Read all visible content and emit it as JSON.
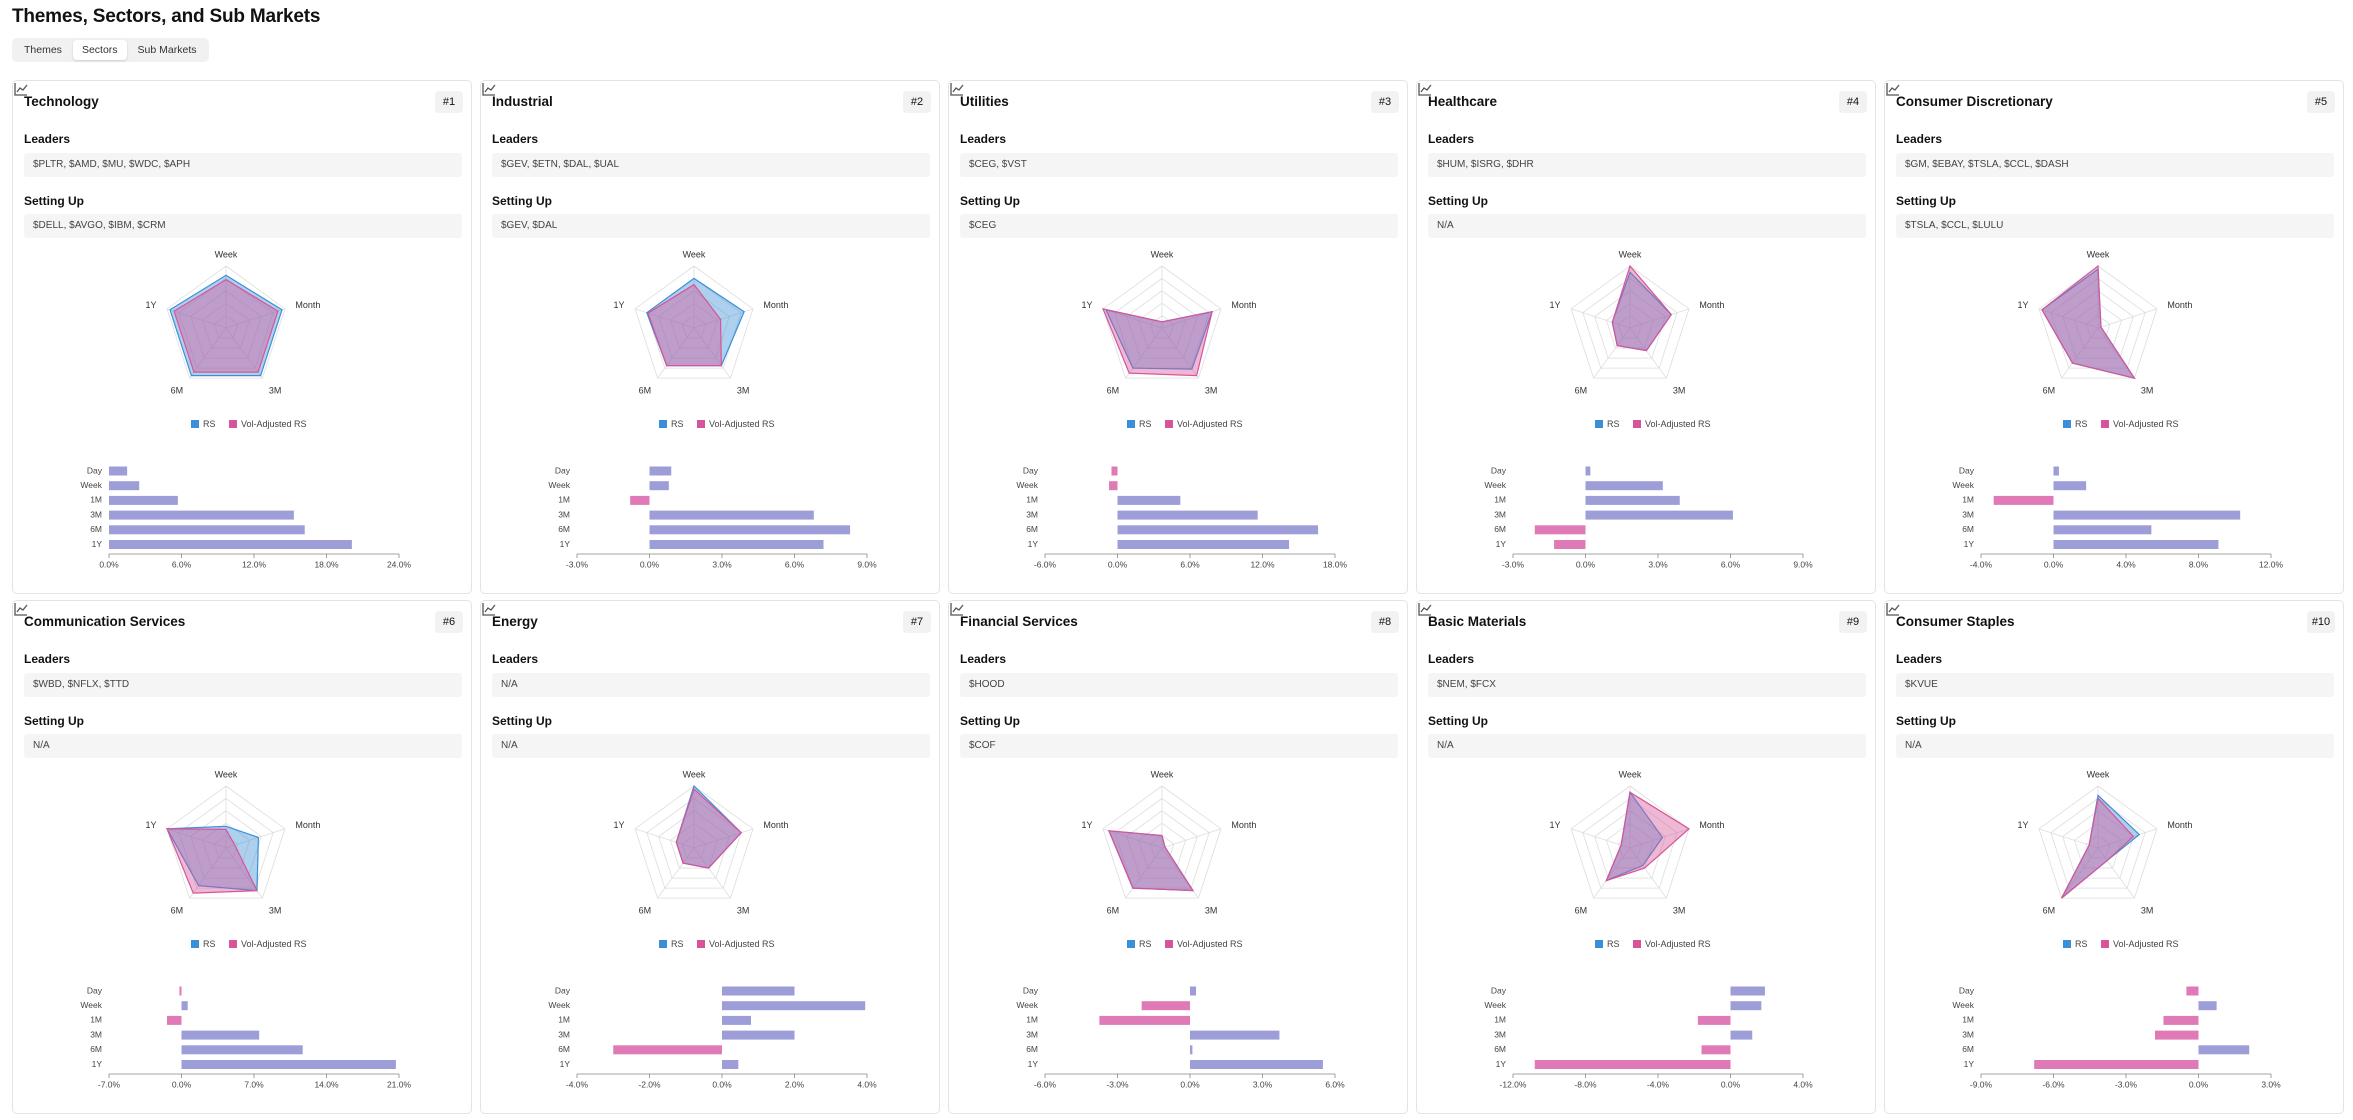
{
  "page": {
    "title": "Themes, Sectors, and Sub Markets",
    "tabs": [
      "Themes",
      "Sectors",
      "Sub Markets"
    ],
    "active_tab": 1
  },
  "labels": {
    "leaders": "Leaders",
    "setting_up": "Setting Up"
  },
  "radar_axes": [
    "Week",
    "Month",
    "3M",
    "6M",
    "1Y"
  ],
  "radar_series": [
    {
      "name": "RS",
      "color": "#3b8fd6"
    },
    {
      "name": "Vol-Adjusted RS",
      "color": "#d6559a"
    }
  ],
  "bar_categories": [
    "Day",
    "Week",
    "1M",
    "3M",
    "6M",
    "1Y"
  ],
  "bar_colors": {
    "positive": "#9d9ed8",
    "negative": "#e07ab6"
  },
  "cards": [
    {
      "title": "Technology",
      "rank": "#1",
      "leaders": "$PLTR, $AMD, $MU, $WDC, $APH",
      "setting_up": "$DELL, $AVGO, $IBM, $CRM",
      "radar": {
        "type": "radar",
        "rlim": [
          0,
          100
        ],
        "series": [
          {
            "values": [
              85,
              95,
              95,
              95,
              95
            ]
          },
          {
            "values": [
              78,
              88,
              88,
              88,
              88
            ]
          }
        ]
      },
      "bars": {
        "type": "bar",
        "values": [
          1.5,
          2.5,
          5.7,
          15.3,
          16.2,
          20.1
        ],
        "xlim": [
          0,
          24
        ],
        "xticks": [
          {
            "value": 0,
            "label": "0.0%"
          },
          {
            "value": 6,
            "label": "6.0%"
          },
          {
            "value": 12,
            "label": "12.0%"
          },
          {
            "value": 18,
            "label": "18.0%"
          },
          {
            "value": 24,
            "label": "24.0%"
          }
        ]
      }
    },
    {
      "title": "Industrial",
      "rank": "#2",
      "leaders": "$GEV, $ETN, $DAL, $UAL",
      "setting_up": "$GEV, $DAL",
      "radar": {
        "type": "radar",
        "rlim": [
          0,
          100
        ],
        "series": [
          {
            "values": [
              80,
              85,
              75,
              75,
              80
            ]
          },
          {
            "values": [
              70,
              45,
              75,
              75,
              78
            ]
          }
        ]
      },
      "bars": {
        "type": "bar",
        "values": [
          0.9,
          0.8,
          -0.8,
          6.8,
          8.3,
          7.2
        ],
        "xlim": [
          -3,
          9
        ],
        "xticks": [
          {
            "value": -3,
            "label": "-3.0%"
          },
          {
            "value": 0,
            "label": "0.0%"
          },
          {
            "value": 3,
            "label": "3.0%"
          },
          {
            "value": 6,
            "label": "6.0%"
          },
          {
            "value": 9,
            "label": "9.0%"
          }
        ]
      }
    },
    {
      "title": "Utilities",
      "rank": "#3",
      "leaders": "$CEG, $VST",
      "setting_up": "$CEG",
      "radar": {
        "type": "radar",
        "rlim": [
          0,
          100
        ],
        "series": [
          {
            "values": [
              10,
              85,
              82,
              80,
              95
            ]
          },
          {
            "values": [
              10,
              85,
              95,
              90,
              100
            ]
          }
        ]
      },
      "bars": {
        "type": "bar",
        "values": [
          -0.5,
          -0.7,
          5.2,
          11.6,
          16.6,
          14.2
        ],
        "xlim": [
          -6,
          18
        ],
        "xticks": [
          {
            "value": -6,
            "label": "-6.0%"
          },
          {
            "value": 0,
            "label": "0.0%"
          },
          {
            "value": 6,
            "label": "6.0%"
          },
          {
            "value": 12,
            "label": "12.0%"
          },
          {
            "value": 18,
            "label": "18.0%"
          }
        ]
      }
    },
    {
      "title": "Healthcare",
      "rank": "#4",
      "leaders": "$HUM, $ISRG, $DHR",
      "setting_up": "N/A",
      "radar": {
        "type": "radar",
        "rlim": [
          0,
          100
        ],
        "series": [
          {
            "values": [
              90,
              70,
              45,
              35,
              30
            ]
          },
          {
            "values": [
              100,
              70,
              45,
              35,
              30
            ]
          }
        ]
      },
      "bars": {
        "type": "bar",
        "values": [
          0.2,
          3.2,
          3.9,
          6.1,
          -2.1,
          -1.3
        ],
        "xlim": [
          -3,
          9
        ],
        "xticks": [
          {
            "value": -3,
            "label": "-3.0%"
          },
          {
            "value": 0,
            "label": "0.0%"
          },
          {
            "value": 3,
            "label": "3.0%"
          },
          {
            "value": 6,
            "label": "6.0%"
          },
          {
            "value": 9,
            "label": "9.0%"
          }
        ]
      }
    },
    {
      "title": "Consumer Discretionary",
      "rank": "#5",
      "leaders": "$GM, $EBAY, $TSLA, $CCL, $DASH",
      "setting_up": "$TSLA, $CCL, $LULU",
      "radar": {
        "type": "radar",
        "rlim": [
          0,
          100
        ],
        "series": [
          {
            "values": [
              95,
              5,
              100,
              70,
              95
            ]
          },
          {
            "values": [
              100,
              5,
              100,
              70,
              95
            ]
          }
        ]
      },
      "bars": {
        "type": "bar",
        "values": [
          0.3,
          1.8,
          -3.3,
          10.3,
          5.4,
          9.1
        ],
        "xlim": [
          -4,
          12
        ],
        "xticks": [
          {
            "value": -4,
            "label": "-4.0%"
          },
          {
            "value": 0,
            "label": "0.0%"
          },
          {
            "value": 4,
            "label": "4.0%"
          },
          {
            "value": 8,
            "label": "8.0%"
          },
          {
            "value": 12,
            "label": "12.0%"
          }
        ]
      }
    },
    {
      "title": "Communication Services",
      "rank": "#6",
      "leaders": "$WBD, $NFLX, $TTD",
      "setting_up": "N/A",
      "radar": {
        "type": "radar",
        "rlim": [
          0,
          100
        ],
        "series": [
          {
            "values": [
              35,
              55,
              85,
              75,
              100
            ]
          },
          {
            "values": [
              30,
              15,
              85,
              90,
              100
            ]
          }
        ]
      },
      "bars": {
        "type": "bar",
        "values": [
          -0.2,
          0.6,
          -1.4,
          7.5,
          11.7,
          20.7
        ],
        "xlim": [
          -7,
          21
        ],
        "xticks": [
          {
            "value": -7,
            "label": "-7.0%"
          },
          {
            "value": 0,
            "label": "0.0%"
          },
          {
            "value": 7,
            "label": "7.0%"
          },
          {
            "value": 14,
            "label": "14.0%"
          },
          {
            "value": 21,
            "label": "21.0%"
          }
        ]
      }
    },
    {
      "title": "Energy",
      "rank": "#7",
      "leaders": "N/A",
      "setting_up": "N/A",
      "radar": {
        "type": "radar",
        "rlim": [
          0,
          100
        ],
        "series": [
          {
            "values": [
              100,
              80,
              40,
              30,
              30
            ]
          },
          {
            "values": [
              95,
              80,
              40,
              30,
              30
            ]
          }
        ]
      },
      "bars": {
        "type": "bar",
        "values": [
          2.0,
          3.95,
          0.8,
          2.0,
          -3.0,
          0.45
        ],
        "xlim": [
          -4,
          4
        ],
        "xticks": [
          {
            "value": -4,
            "label": "-4.0%"
          },
          {
            "value": -2,
            "label": "-2.0%"
          },
          {
            "value": 0,
            "label": "0.0%"
          },
          {
            "value": 2,
            "label": "2.0%"
          },
          {
            "value": 4,
            "label": "4.0%"
          }
        ]
      }
    },
    {
      "title": "Financial Services",
      "rank": "#8",
      "leaders": "$HOOD",
      "setting_up": "$COF",
      "radar": {
        "type": "radar",
        "rlim": [
          0,
          100
        ],
        "series": [
          {
            "values": [
              20,
              5,
              85,
              80,
              90
            ]
          },
          {
            "values": [
              20,
              5,
              85,
              80,
              90
            ]
          }
        ]
      },
      "bars": {
        "type": "bar",
        "values": [
          0.25,
          -2.0,
          -3.75,
          3.7,
          0.1,
          5.5
        ],
        "xlim": [
          -6,
          6
        ],
        "xticks": [
          {
            "value": -6,
            "label": "-6.0%"
          },
          {
            "value": -3,
            "label": "-3.0%"
          },
          {
            "value": 0,
            "label": "0.0%"
          },
          {
            "value": 3,
            "label": "3.0%"
          },
          {
            "value": 6,
            "label": "6.0%"
          }
        ]
      }
    },
    {
      "title": "Basic Materials",
      "rank": "#9",
      "leaders": "$NEM, $FCX",
      "setting_up": "N/A",
      "radar": {
        "type": "radar",
        "rlim": [
          0,
          100
        ],
        "series": [
          {
            "values": [
              90,
              55,
              35,
              65,
              15
            ]
          },
          {
            "values": [
              90,
              100,
              40,
              65,
              15
            ]
          }
        ]
      },
      "bars": {
        "type": "bar",
        "values": [
          1.9,
          1.7,
          -1.8,
          1.2,
          -1.6,
          -10.8
        ],
        "xlim": [
          -12,
          4
        ],
        "xticks": [
          {
            "value": -12,
            "label": "-12.0%"
          },
          {
            "value": -8,
            "label": "-8.0%"
          },
          {
            "value": -4,
            "label": "-4.0%"
          },
          {
            "value": 0,
            "label": "0.0%"
          },
          {
            "value": 4,
            "label": "4.0%"
          }
        ]
      }
    },
    {
      "title": "Consumer Staples",
      "rank": "#10",
      "leaders": "$KVUE",
      "setting_up": "N/A",
      "radar": {
        "type": "radar",
        "rlim": [
          0,
          100
        ],
        "series": [
          {
            "values": [
              85,
              70,
              25,
              100,
              15
            ]
          },
          {
            "values": [
              80,
              60,
              25,
              100,
              15
            ]
          }
        ]
      },
      "bars": {
        "type": "bar",
        "values": [
          -0.5,
          0.75,
          -1.45,
          -1.8,
          2.1,
          -6.8
        ],
        "xlim": [
          -9,
          3
        ],
        "xticks": [
          {
            "value": -9,
            "label": "-9.0%"
          },
          {
            "value": -6,
            "label": "-6.0%"
          },
          {
            "value": -3,
            "label": "-3.0%"
          },
          {
            "value": 0,
            "label": "0.0%"
          },
          {
            "value": 3,
            "label": "3.0%"
          }
        ]
      }
    }
  ]
}
